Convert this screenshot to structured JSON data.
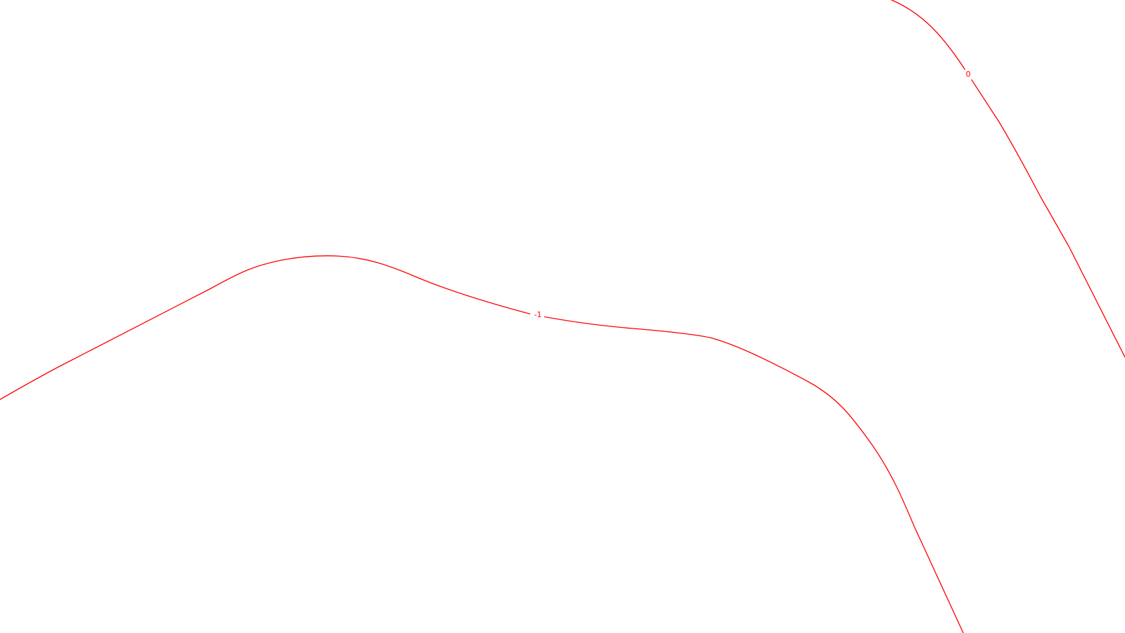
{
  "map": {
    "background_color": "#ffffff",
    "contour_color": "#ff0000",
    "contours": [
      {
        "id": "contour-minus-1",
        "value": "-1"
      },
      {
        "id": "contour-0",
        "value": "0"
      }
    ]
  }
}
